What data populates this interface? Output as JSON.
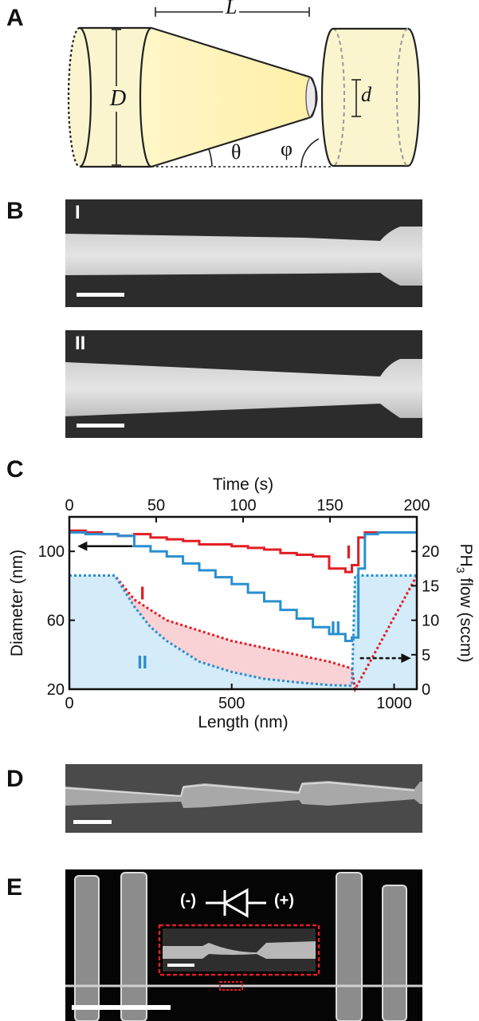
{
  "panels": {
    "a": {
      "label": "A",
      "L_label": "L",
      "D_label": "D",
      "d_label": "d",
      "theta_label": "θ",
      "phi_label": "φ"
    },
    "b": {
      "label": "B",
      "image_I_label": "I",
      "image_II_label": "II"
    },
    "c": {
      "label": "C"
    },
    "d": {
      "label": "D"
    },
    "e": {
      "label": "E",
      "minus_label": "(-)",
      "plus_label": "(+)"
    }
  },
  "colors": {
    "red": "#e31e24",
    "blue": "#2a8fd0",
    "fill_blue": "#d4ebf9",
    "fill_red": "#f9d2d6",
    "cylinder_fill": "#fbf5cf",
    "cone_fill": "#fff3b8"
  },
  "chart_data": {
    "type": "line",
    "xlabel": "Length (nm)",
    "x_top_label": "Time (s)",
    "ylabel": "Diameter (nm)",
    "y2label_main": "PH",
    "y2label_sub": "3",
    "y2label_tail": " flow (sccm)",
    "xlim": [
      0,
      1070
    ],
    "x_top_lim": [
      0,
      200
    ],
    "ylim": [
      20,
      120
    ],
    "y2lim": [
      0,
      25
    ],
    "x_ticks": [
      "0",
      "500",
      "1000"
    ],
    "x_tick_values": [
      0,
      500,
      1000
    ],
    "x_top_ticks": [
      "0",
      "50",
      "100",
      "150",
      "200"
    ],
    "x_top_tick_values": [
      0,
      50,
      100,
      150,
      200
    ],
    "y_ticks": [
      "20",
      "60",
      "100"
    ],
    "y_tick_values": [
      20,
      60,
      100
    ],
    "y2_ticks": [
      "0",
      "5",
      "10",
      "15",
      "20"
    ],
    "y2_tick_values": [
      0,
      5,
      10,
      15,
      20
    ],
    "series": [
      {
        "name": "I",
        "kind": "diameter",
        "color": "#e31e24",
        "x": [
          0,
          50,
          100,
          150,
          200,
          250,
          300,
          350,
          400,
          450,
          500,
          550,
          600,
          650,
          700,
          750,
          800,
          850,
          870,
          890,
          910,
          950,
          1000,
          1070
        ],
        "y": [
          112,
          111,
          110,
          109,
          110,
          108,
          107,
          106,
          104,
          104,
          103,
          102,
          101,
          99,
          98,
          97,
          90,
          88,
          92,
          108,
          111,
          111,
          111,
          111
        ]
      },
      {
        "name": "II",
        "kind": "diameter",
        "color": "#2a8fd0",
        "x": [
          0,
          50,
          100,
          150,
          200,
          250,
          300,
          350,
          400,
          450,
          500,
          550,
          600,
          650,
          700,
          750,
          800,
          850,
          870,
          890,
          910,
          950,
          1000,
          1070
        ],
        "y": [
          111,
          110,
          110,
          109,
          103,
          100,
          97,
          93,
          89,
          85,
          81,
          76,
          71,
          66,
          61,
          56,
          52,
          48,
          50,
          90,
          110,
          111,
          111,
          111
        ]
      },
      {
        "name": "I",
        "kind": "flow",
        "color": "#e31e24",
        "x": [
          0,
          140,
          200,
          300,
          400,
          500,
          600,
          700,
          800,
          870,
          880,
          1070
        ],
        "y": [
          16.5,
          16.5,
          13,
          10,
          8.5,
          7,
          6,
          5,
          4,
          3,
          0,
          16.5
        ]
      },
      {
        "name": "II",
        "kind": "flow",
        "color": "#2a8fd0",
        "x": [
          0,
          140,
          200,
          250,
          300,
          400,
          500,
          600,
          700,
          800,
          870,
          880,
          1070
        ],
        "y": [
          16.5,
          16.5,
          12,
          9,
          7,
          4,
          2.5,
          1.5,
          1,
          0.6,
          0.5,
          16.5,
          16.5
        ]
      }
    ],
    "annotations": [
      {
        "text": "I",
        "color": "#e31e24",
        "x": 860,
        "y": 96
      },
      {
        "text": "II",
        "color": "#2a8fd0",
        "x": 820,
        "y": 52
      },
      {
        "text": "I",
        "color": "#e31e24",
        "x": 225,
        "y": 13
      },
      {
        "text": "II",
        "color": "#2a8fd0",
        "x": 225,
        "y": 3
      }
    ]
  }
}
